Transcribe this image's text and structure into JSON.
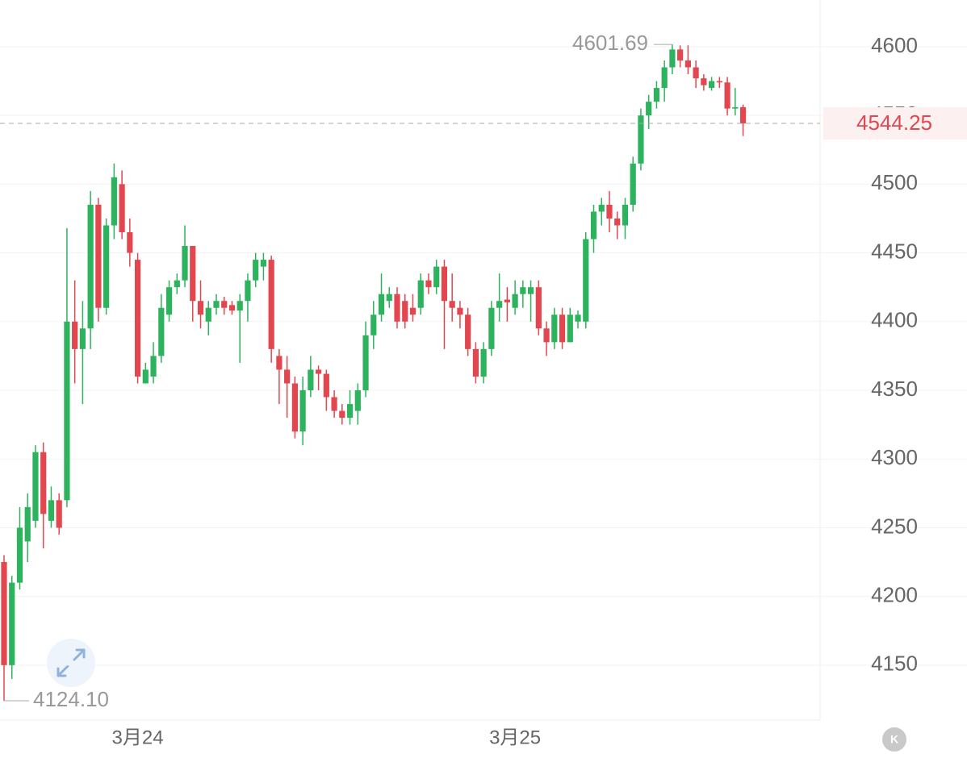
{
  "chart_data": {
    "type": "candlestick",
    "categories": [
      null,
      null,
      null,
      null,
      null,
      null,
      null,
      null,
      null,
      null,
      null,
      null,
      null,
      null,
      null,
      null,
      null,
      "3月24",
      null,
      null,
      null,
      null,
      null,
      null,
      null,
      null,
      null,
      null,
      null,
      null,
      null,
      null,
      null,
      null,
      null,
      null,
      null,
      null,
      null,
      null,
      null,
      null,
      null,
      null,
      null,
      null,
      null,
      null,
      null,
      null,
      null,
      null,
      null,
      null,
      null,
      null,
      null,
      null,
      null,
      null,
      null,
      null,
      null,
      null,
      null,
      "3月25",
      null,
      null,
      null,
      null,
      null,
      null,
      null,
      null,
      null,
      null,
      null,
      null,
      null,
      null,
      null,
      null,
      null,
      null,
      null,
      null,
      null,
      null,
      null,
      null,
      null,
      null,
      null,
      null,
      null
    ],
    "open": [
      4225,
      4150,
      4210,
      4240,
      4255,
      4305,
      4255,
      4270,
      4270,
      4400,
      4380,
      4395,
      4485,
      4410,
      4470,
      4500,
      4465,
      4445,
      4355,
      4360,
      4375,
      4405,
      4425,
      4430,
      4455,
      4415,
      4400,
      4410,
      4415,
      4412,
      4408,
      4415,
      4430,
      4440,
      4445,
      4375,
      4365,
      4355,
      4320,
      4350,
      4365,
      4362,
      4345,
      4335,
      4330,
      4335,
      4350,
      4390,
      4405,
      4415,
      4420,
      4415,
      4410,
      4410,
      4430,
      4425,
      4440,
      4415,
      4410,
      4405,
      4380,
      4360,
      4380,
      4410,
      4416,
      4410,
      4420,
      4420,
      4425,
      4395,
      4385,
      4405,
      4385,
      4400,
      4400,
      4460,
      4480,
      4485,
      4475,
      4470,
      4485,
      4515,
      4550,
      4560,
      4570,
      4585,
      4598,
      4590,
      4585,
      4577,
      4570,
      4575,
      4574,
      4555,
      4556
    ],
    "high": [
      4230,
      4215,
      4265,
      4275,
      4310,
      4312,
      4280,
      4275,
      4468,
      4430,
      4415,
      4495,
      4490,
      4475,
      4515,
      4510,
      4475,
      4450,
      4370,
      4385,
      4420,
      4430,
      4435,
      4470,
      4455,
      4430,
      4415,
      4420,
      4418,
      4415,
      4420,
      4435,
      4450,
      4450,
      4448,
      4380,
      4375,
      4360,
      4360,
      4375,
      4368,
      4365,
      4350,
      4340,
      4350,
      4355,
      4400,
      4415,
      4435,
      4425,
      4425,
      4420,
      4420,
      4435,
      4435,
      4445,
      4445,
      4435,
      4415,
      4410,
      4385,
      4385,
      4415,
      4435,
      4425,
      4430,
      4430,
      4430,
      4430,
      4400,
      4410,
      4410,
      4410,
      4408,
      4465,
      4485,
      4490,
      4495,
      4480,
      4490,
      4520,
      4555,
      4565,
      4575,
      4590,
      4601.69,
      4601,
      4601,
      4590,
      4580,
      4578,
      4578,
      4578,
      4570,
      4558
    ],
    "low": [
      4124.1,
      4140,
      4205,
      4225,
      4250,
      4235,
      4250,
      4245,
      4265,
      4355,
      4340,
      4380,
      4400,
      4405,
      4460,
      4460,
      4440,
      4355,
      4355,
      4355,
      4370,
      4400,
      4420,
      4425,
      4400,
      4395,
      4390,
      4405,
      4405,
      4405,
      4370,
      4400,
      4425,
      4430,
      4370,
      4340,
      4330,
      4315,
      4310,
      4345,
      4350,
      4335,
      4330,
      4325,
      4325,
      4325,
      4345,
      4380,
      4400,
      4410,
      4395,
      4395,
      4400,
      4405,
      4420,
      4420,
      4380,
      4400,
      4395,
      4375,
      4355,
      4355,
      4375,
      4400,
      4400,
      4405,
      4410,
      4400,
      4390,
      4375,
      4380,
      4380,
      4385,
      4395,
      4395,
      4450,
      4470,
      4465,
      4460,
      4460,
      4480,
      4510,
      4540,
      4555,
      4560,
      4580,
      4585,
      4580,
      4570,
      4568,
      4568,
      4570,
      4550,
      4550,
      4535
    ],
    "close": [
      4150,
      4210,
      4250,
      4265,
      4305,
      4260,
      4270,
      4250,
      4400,
      4380,
      4395,
      4485,
      4410,
      4470,
      4505,
      4465,
      4450,
      4360,
      4365,
      4375,
      4410,
      4425,
      4430,
      4455,
      4415,
      4405,
      4410,
      4415,
      4410,
      4408,
      4415,
      4430,
      4445,
      4445,
      4380,
      4365,
      4355,
      4320,
      4350,
      4365,
      4362,
      4345,
      4335,
      4330,
      4340,
      4350,
      4390,
      4405,
      4420,
      4420,
      4400,
      4400,
      4405,
      4430,
      4425,
      4440,
      4415,
      4410,
      4405,
      4380,
      4360,
      4380,
      4410,
      4415,
      4414,
      4420,
      4425,
      4425,
      4395,
      4385,
      4405,
      4385,
      4405,
      4405,
      4460,
      4480,
      4485,
      4475,
      4470,
      4485,
      4515,
      4550,
      4560,
      4570,
      4585,
      4598,
      4590,
      4585,
      4577,
      4572,
      4575,
      4574,
      4555,
      4556,
      4544.25
    ],
    "up_color": "#2db35d",
    "down_color": "#e2474f",
    "ylim": [
      4110,
      4634
    ],
    "yticks": [
      4150,
      4200,
      4250,
      4300,
      4350,
      4400,
      4450,
      4500,
      4550,
      4600
    ],
    "grid": true,
    "max_annotation": {
      "value": 4601.69,
      "label": "4601.69"
    },
    "min_annotation": {
      "value": 4124.1,
      "label": "4124.10"
    },
    "last_price": 4544.25
  },
  "ui": {
    "corner_button": "K"
  }
}
